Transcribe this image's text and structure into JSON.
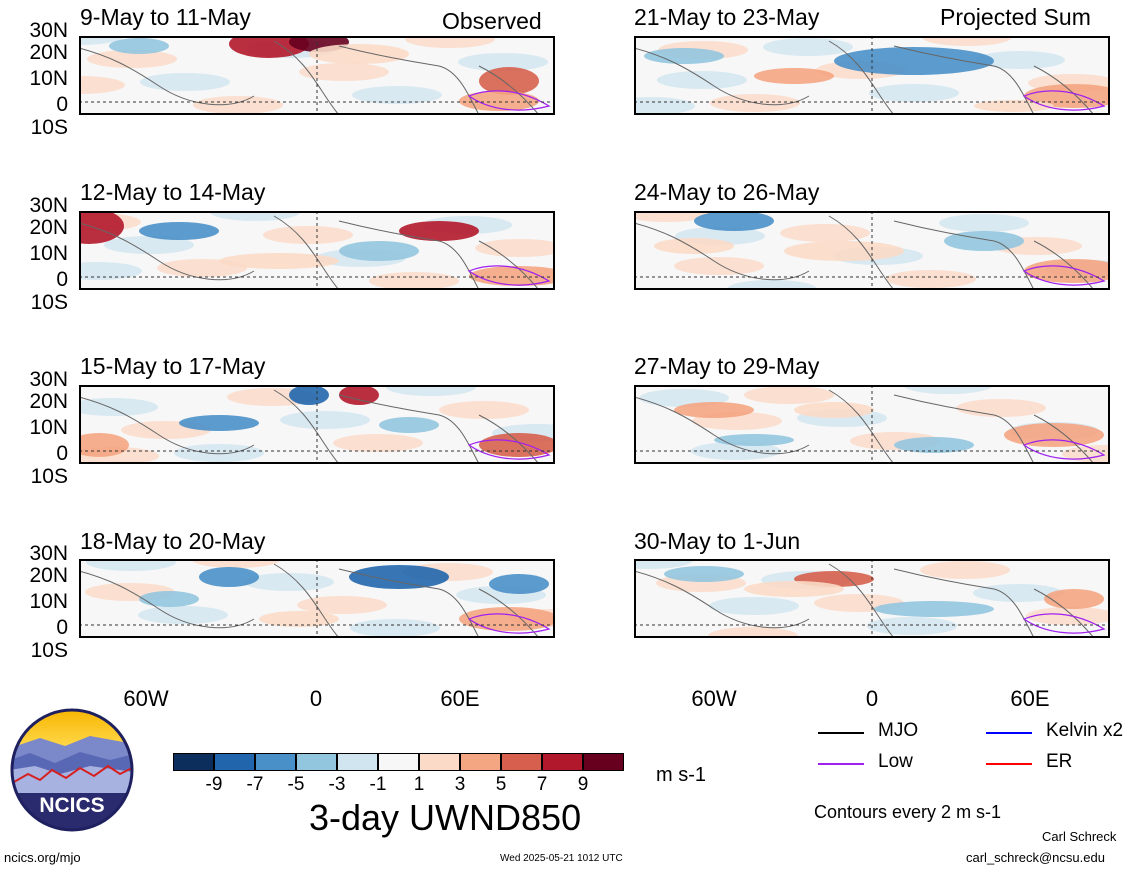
{
  "header": {
    "left_tag": "Observed",
    "right_tag": "Projected Sum"
  },
  "panels": {
    "left": [
      "9-May to 11-May",
      "12-May to 14-May",
      "15-May to 17-May",
      "18-May to 20-May"
    ],
    "right": [
      "21-May to 23-May",
      "24-May to 26-May",
      "27-May to 29-May",
      "30-May to 1-Jun"
    ]
  },
  "lat_labels": [
    "30N",
    "20N",
    "10N",
    "0",
    "10S"
  ],
  "lon_labels": [
    "60W",
    "0",
    "60E"
  ],
  "colorbar": {
    "title": "3-day UWND850",
    "units": "m s-1",
    "ticks": [
      "-9",
      "-7",
      "-5",
      "-3",
      "-1",
      "1",
      "3",
      "5",
      "7",
      "9"
    ],
    "colors": [
      "#0b2e5c",
      "#2166ac",
      "#4a90c8",
      "#92c5de",
      "#d1e5f0",
      "#f7f7f7",
      "#fbdac7",
      "#f4a582",
      "#d6604d",
      "#b2182b",
      "#67001f"
    ]
  },
  "legend": {
    "items": [
      {
        "label": "MJO",
        "color": "#000000"
      },
      {
        "label": "Kelvin x2",
        "color": "#0000ff"
      },
      {
        "label": "Low",
        "color": "#a020f0"
      },
      {
        "label": "ER",
        "color": "#ff0000"
      }
    ],
    "note": "Contours every 2 m s-1"
  },
  "logo": {
    "text": "NCICS"
  },
  "footer": {
    "left": "ncics.org/mjo",
    "center": "Wed 2025-05-21 1012 UTC",
    "author": "Carl Schreck",
    "email": "carl_schreck@ncsu.edu"
  }
}
